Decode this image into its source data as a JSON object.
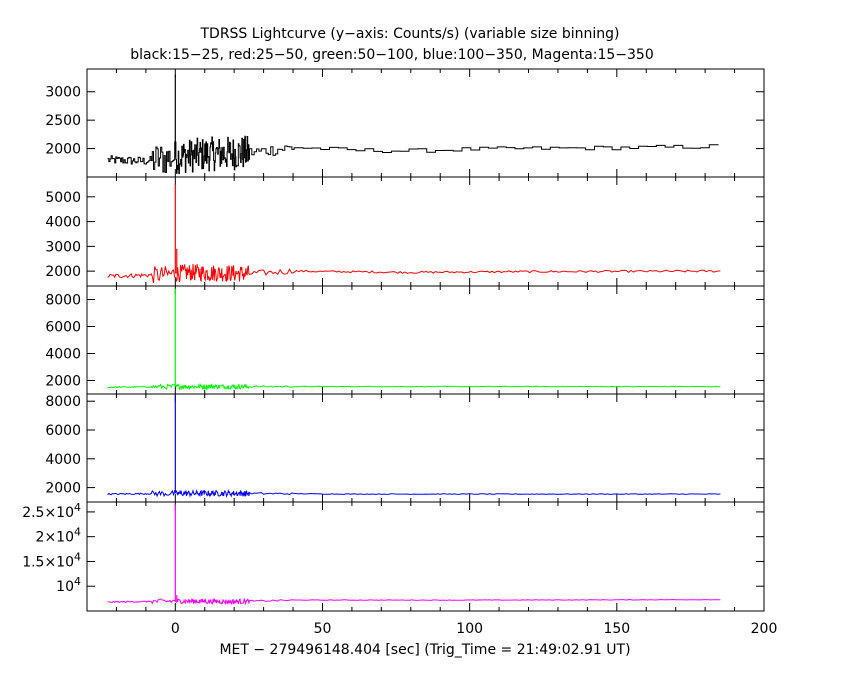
{
  "chart_data": {
    "type": "line",
    "title": "TDRSS Lightcurve (y−axis: Counts/s) (variable size binning)",
    "subtitle": "black:15−25, red:25−50, green:50−100, blue:100−350, Magenta:15−350",
    "xlabel": "MET − 279496148.404 [sec] (Trig_Time = 21:49:02.91 UT)",
    "xlim": [
      -30,
      200
    ],
    "x_ticks": [
      0,
      50,
      100,
      150,
      200
    ],
    "x_tick_labels": [
      "0",
      "50",
      "100",
      "150",
      "200"
    ],
    "panels": [
      {
        "name": "15-25 keV",
        "color": "#000000",
        "ylim": [
          1500,
          3400
        ],
        "y_ticks": [
          2000,
          2500,
          3000
        ],
        "y_tick_labels": [
          "2000",
          "2500",
          "3000"
        ],
        "baseline": [
          [
            -23,
            1800
          ],
          [
            -10,
            1780
          ],
          [
            0,
            1850
          ],
          [
            10,
            1900
          ],
          [
            25,
            1930
          ],
          [
            40,
            2020
          ],
          [
            60,
            1970
          ],
          [
            80,
            1960
          ],
          [
            100,
            1990
          ],
          [
            120,
            2000
          ],
          [
            140,
            2010
          ],
          [
            160,
            2020
          ],
          [
            186,
            2040
          ]
        ],
        "noise_amp": 300,
        "step": true,
        "peak": [
          [
            0,
            3300
          ]
        ]
      },
      {
        "name": "25-50 keV",
        "color": "#ff0000",
        "ylim": [
          1400,
          5800
        ],
        "y_ticks": [
          2000,
          3000,
          4000,
          5000
        ],
        "y_tick_labels": [
          "2000",
          "3000",
          "4000",
          "5000"
        ],
        "baseline": [
          [
            -23,
            1800
          ],
          [
            -5,
            1850
          ],
          [
            5,
            1950
          ],
          [
            25,
            1900
          ],
          [
            40,
            2000
          ],
          [
            80,
            1950
          ],
          [
            120,
            1980
          ],
          [
            186,
            2000
          ]
        ],
        "noise_amp": 350,
        "step": false,
        "peak": [
          [
            0,
            5500
          ],
          [
            0.5,
            2900
          ]
        ]
      },
      {
        "name": "50-100 keV",
        "color": "#00ff00",
        "ylim": [
          1000,
          9000
        ],
        "y_ticks": [
          2000,
          4000,
          6000,
          8000
        ],
        "y_tick_labels": [
          "2000",
          "4000",
          "6000",
          "8000"
        ],
        "baseline": [
          [
            -23,
            1500
          ],
          [
            0,
            1550
          ],
          [
            20,
            1550
          ],
          [
            60,
            1550
          ],
          [
            186,
            1550
          ]
        ],
        "noise_amp": 180,
        "step": false,
        "peak": [
          [
            0,
            8800
          ]
        ]
      },
      {
        "name": "100-350 keV",
        "color": "#0000ff",
        "ylim": [
          1000,
          8500
        ],
        "y_ticks": [
          2000,
          4000,
          6000,
          8000
        ],
        "y_tick_labels": [
          "2000",
          "4000",
          "6000",
          "8000"
        ],
        "baseline": [
          [
            -23,
            1550
          ],
          [
            0,
            1600
          ],
          [
            20,
            1600
          ],
          [
            60,
            1550
          ],
          [
            186,
            1550
          ]
        ],
        "noise_amp": 200,
        "step": false,
        "peak": [
          [
            0,
            8400
          ]
        ]
      },
      {
        "name": "15-350 keV",
        "color": "#ff00ff",
        "ylim": [
          5000,
          27000
        ],
        "y_ticks": [
          10000,
          15000,
          20000,
          25000
        ],
        "y_tick_labels": [
          "10^4",
          "1.5×10^4",
          "2×10^4",
          "2.5×10^4"
        ],
        "baseline": [
          [
            -23,
            6800
          ],
          [
            0,
            7000
          ],
          [
            20,
            6900
          ],
          [
            40,
            7200
          ],
          [
            100,
            7200
          ],
          [
            186,
            7300
          ]
        ],
        "noise_amp": 500,
        "step": false,
        "peak": [
          [
            0,
            26500
          ],
          [
            0.5,
            8200
          ]
        ]
      }
    ]
  }
}
